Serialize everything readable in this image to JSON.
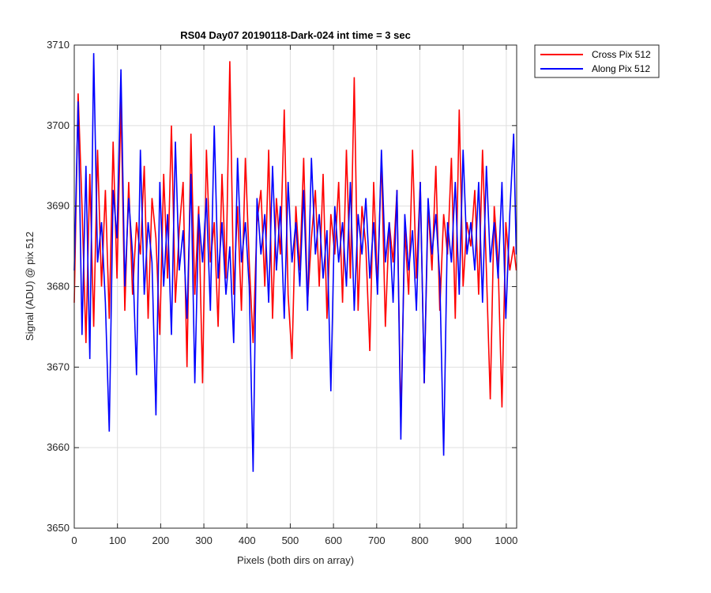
{
  "chart_data": {
    "type": "line",
    "title": "RS04 Day07 20190118-Dark-024 int time = 3 sec",
    "xlabel": "Pixels (both dirs on array)",
    "ylabel": "Signal (ADU) @ pix 512",
    "xlim": [
      0,
      1024
    ],
    "ylim": [
      3650,
      3710
    ],
    "xticks": [
      0,
      100,
      200,
      300,
      400,
      500,
      600,
      700,
      800,
      900,
      1000
    ],
    "yticks": [
      3650,
      3660,
      3670,
      3680,
      3690,
      3700,
      3710
    ],
    "grid": true,
    "legend_position": "outside-top-right",
    "series": [
      {
        "name": "Cross Pix 512",
        "color": "#ff0000",
        "x": [
          0,
          9,
          18,
          27,
          36,
          45,
          54,
          63,
          72,
          81,
          90,
          99,
          108,
          117,
          126,
          135,
          144,
          153,
          162,
          171,
          180,
          189,
          198,
          207,
          216,
          225,
          234,
          243,
          252,
          261,
          270,
          279,
          288,
          297,
          306,
          315,
          324,
          333,
          342,
          351,
          360,
          369,
          378,
          387,
          396,
          405,
          414,
          423,
          432,
          441,
          450,
          459,
          468,
          477,
          486,
          495,
          504,
          513,
          522,
          531,
          540,
          549,
          558,
          567,
          576,
          585,
          594,
          603,
          612,
          621,
          630,
          639,
          648,
          657,
          666,
          675,
          684,
          693,
          702,
          711,
          720,
          729,
          738,
          747,
          756,
          765,
          774,
          783,
          792,
          801,
          810,
          819,
          828,
          837,
          846,
          855,
          864,
          873,
          882,
          891,
          900,
          909,
          918,
          927,
          936,
          945,
          954,
          963,
          972,
          981,
          990,
          999,
          1008,
          1017,
          1023
        ],
        "values": [
          3678,
          3704,
          3690,
          3673,
          3694,
          3675,
          3697,
          3680,
          3692,
          3676,
          3698,
          3681,
          3703,
          3677,
          3693,
          3679,
          3688,
          3684,
          3695,
          3676,
          3691,
          3686,
          3674,
          3694,
          3681,
          3700,
          3678,
          3687,
          3693,
          3670,
          3699,
          3679,
          3690,
          3668,
          3697,
          3683,
          3688,
          3675,
          3694,
          3681,
          3708,
          3679,
          3690,
          3677,
          3696,
          3683,
          3673,
          3688,
          3692,
          3680,
          3697,
          3676,
          3691,
          3684,
          3702,
          3679,
          3671,
          3690,
          3682,
          3696,
          3678,
          3686,
          3692,
          3680,
          3694,
          3676,
          3689,
          3684,
          3693,
          3678,
          3697,
          3681,
          3706,
          3677,
          3690,
          3685,
          3672,
          3693,
          3680,
          3696,
          3675,
          3688,
          3683,
          3692,
          3663,
          3687,
          3679,
          3697,
          3681,
          3693,
          3668,
          3690,
          3682,
          3695,
          3677,
          3689,
          3684,
          3696,
          3676,
          3702,
          3680,
          3688,
          3685,
          3692,
          3679,
          3697,
          3682,
          3666,
          3690,
          3683,
          3665,
          3688,
          3682,
          3685,
          3682
        ]
      },
      {
        "name": "Along Pix 512",
        "color": "#0000ff",
        "x": [
          0,
          9,
          18,
          27,
          36,
          45,
          54,
          63,
          72,
          81,
          90,
          99,
          108,
          117,
          126,
          135,
          144,
          153,
          162,
          171,
          180,
          189,
          198,
          207,
          216,
          225,
          234,
          243,
          252,
          261,
          270,
          279,
          288,
          297,
          306,
          315,
          324,
          333,
          342,
          351,
          360,
          369,
          378,
          387,
          396,
          405,
          414,
          423,
          432,
          441,
          450,
          459,
          468,
          477,
          486,
          495,
          504,
          513,
          522,
          531,
          540,
          549,
          558,
          567,
          576,
          585,
          594,
          603,
          612,
          621,
          630,
          639,
          648,
          657,
          666,
          675,
          684,
          693,
          702,
          711,
          720,
          729,
          738,
          747,
          756,
          765,
          774,
          783,
          792,
          801,
          810,
          819,
          828,
          837,
          846,
          855,
          864,
          873,
          882,
          891,
          900,
          909,
          918,
          927,
          936,
          945,
          954,
          963,
          972,
          981,
          990,
          999,
          1008,
          1017,
          1023
        ],
        "values": [
          3682,
          3703,
          3674,
          3695,
          3671,
          3709,
          3683,
          3688,
          3678,
          3662,
          3692,
          3686,
          3707,
          3680,
          3691,
          3684,
          3669,
          3697,
          3679,
          3688,
          3683,
          3664,
          3693,
          3680,
          3689,
          3674,
          3698,
          3682,
          3687,
          3676,
          3694,
          3668,
          3689,
          3683,
          3691,
          3677,
          3700,
          3681,
          3688,
          3679,
          3685,
          3673,
          3696,
          3683,
          3688,
          3680,
          3657,
          3691,
          3684,
          3689,
          3678,
          3695,
          3682,
          3690,
          3676,
          3693,
          3683,
          3688,
          3680,
          3692,
          3677,
          3696,
          3684,
          3689,
          3681,
          3687,
          3667,
          3690,
          3683,
          3688,
          3680,
          3693,
          3677,
          3689,
          3684,
          3691,
          3681,
          3688,
          3679,
          3697,
          3683,
          3688,
          3678,
          3692,
          3661,
          3689,
          3682,
          3687,
          3677,
          3693,
          3668,
          3691,
          3684,
          3689,
          3681,
          3659,
          3688,
          3683,
          3693,
          3679,
          3697,
          3684,
          3688,
          3682,
          3693,
          3678,
          3695,
          3683,
          3688,
          3681,
          3693,
          3676,
          3689,
          3699,
          3684
        ]
      }
    ]
  }
}
